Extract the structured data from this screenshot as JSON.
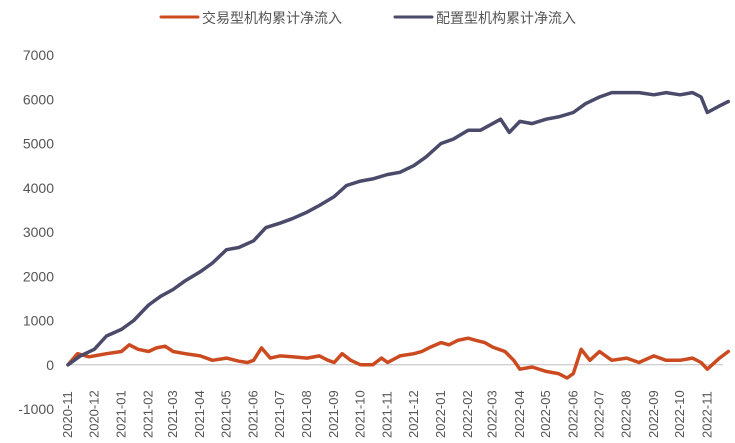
{
  "chart_data": {
    "type": "line",
    "title": "",
    "xlabel": "",
    "ylabel": "",
    "ylim": [
      -1000,
      7000
    ],
    "yticks": [
      -1000,
      0,
      1000,
      2000,
      3000,
      4000,
      5000,
      6000,
      7000
    ],
    "grid": false,
    "legend_position": "top-center",
    "categories": [
      "2020-11",
      "2020-12",
      "2021-01",
      "2021-02",
      "2021-03",
      "2021-04",
      "2021-05",
      "2021-06",
      "2021-07",
      "2021-08",
      "2021-09",
      "2021-10",
      "2021-11",
      "2021-12",
      "2022-01",
      "2022-02",
      "2022-03",
      "2022-04",
      "2022-05",
      "2022-06",
      "2022-07",
      "2022-08",
      "2022-09",
      "2022-10",
      "2022-11"
    ],
    "series": [
      {
        "name": "交易型机构累计净流入",
        "color": "#cc4a1f",
        "x": [
          "2020-11",
          "2020-11-12",
          "2020-11-25",
          "2020-12",
          "2020-12-15",
          "2021-01",
          "2021-01-10",
          "2021-01-20",
          "2021-02",
          "2021-02-10",
          "2021-02-20",
          "2021-03",
          "2021-03-15",
          "2021-04",
          "2021-04-15",
          "2021-05",
          "2021-05-15",
          "2021-05-25",
          "2021-06",
          "2021-06-10",
          "2021-06-20",
          "2021-07",
          "2021-07-15",
          "2021-08",
          "2021-08-15",
          "2021-08-25",
          "2021-09",
          "2021-09-10",
          "2021-09-20",
          "2021-10",
          "2021-10-15",
          "2021-10-25",
          "2021-11",
          "2021-11-15",
          "2021-12",
          "2021-12-10",
          "2021-12-20",
          "2022-01",
          "2022-01-10",
          "2022-01-20",
          "2022-02",
          "2022-02-10",
          "2022-02-20",
          "2022-03",
          "2022-03-15",
          "2022-03-25",
          "2022-04",
          "2022-04-15",
          "2022-05",
          "2022-05-15",
          "2022-05-25",
          "2022-06",
          "2022-06-10",
          "2022-06-20",
          "2022-07",
          "2022-07-15",
          "2022-08",
          "2022-08-15",
          "2022-09",
          "2022-09-15",
          "2022-10",
          "2022-10-15",
          "2022-10-25",
          "2022-11",
          "2022-11-15",
          "2022-11-25"
        ],
        "values": [
          0,
          250,
          180,
          200,
          250,
          300,
          450,
          350,
          300,
          380,
          420,
          300,
          250,
          200,
          100,
          150,
          80,
          50,
          100,
          380,
          150,
          200,
          180,
          150,
          200,
          100,
          50,
          250,
          100,
          0,
          0,
          150,
          50,
          200,
          250,
          300,
          400,
          500,
          450,
          550,
          600,
          550,
          500,
          400,
          300,
          100,
          -100,
          -50,
          -150,
          -200,
          -300,
          -200,
          350,
          100,
          300,
          100,
          150,
          50,
          200,
          100,
          100,
          150,
          50,
          -100,
          150,
          300
        ]
      },
      {
        "name": "配置型机构累计净流入",
        "color": "#4a4a6a",
        "x": [
          "2020-11",
          "2020-11-15",
          "2020-12",
          "2020-12-15",
          "2021-01",
          "2021-01-15",
          "2021-02",
          "2021-02-15",
          "2021-03",
          "2021-03-15",
          "2021-04",
          "2021-04-15",
          "2021-05",
          "2021-05-15",
          "2021-06",
          "2021-06-15",
          "2021-07",
          "2021-07-15",
          "2021-08",
          "2021-08-15",
          "2021-09",
          "2021-09-15",
          "2021-10",
          "2021-10-15",
          "2021-11",
          "2021-11-15",
          "2021-12",
          "2021-12-15",
          "2022-01",
          "2022-01-15",
          "2022-02",
          "2022-02-15",
          "2022-03",
          "2022-03-10",
          "2022-03-20",
          "2022-04",
          "2022-04-15",
          "2022-05",
          "2022-05-15",
          "2022-06",
          "2022-06-15",
          "2022-07",
          "2022-07-15",
          "2022-08",
          "2022-08-15",
          "2022-09",
          "2022-09-15",
          "2022-10",
          "2022-10-15",
          "2022-10-25",
          "2022-11",
          "2022-11-15",
          "2022-11-25"
        ],
        "values": [
          0,
          200,
          350,
          650,
          800,
          1000,
          1350,
          1550,
          1700,
          1900,
          2100,
          2300,
          2600,
          2650,
          2800,
          3100,
          3200,
          3300,
          3450,
          3600,
          3800,
          4050,
          4150,
          4200,
          4300,
          4350,
          4500,
          4700,
          5000,
          5100,
          5300,
          5300,
          5450,
          5550,
          5250,
          5500,
          5450,
          5550,
          5600,
          5700,
          5900,
          6050,
          6150,
          6150,
          6150,
          6100,
          6150,
          6100,
          6150,
          6050,
          5700,
          5850,
          5950
        ]
      }
    ]
  }
}
